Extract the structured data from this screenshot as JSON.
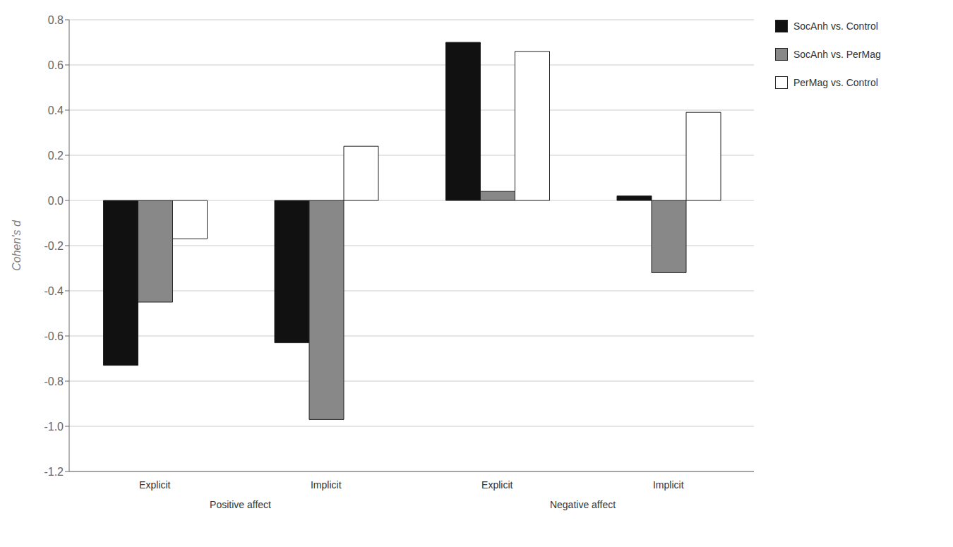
{
  "chart_data": {
    "type": "bar",
    "ylabel": "Cohen's d",
    "categories": [
      "Explicit",
      "Implicit",
      "Explicit",
      "Implicit"
    ],
    "annotations": [
      "Positive affect",
      "Negative affect"
    ],
    "series": [
      {
        "name": "SocAnh vs. Control",
        "color": "#111111",
        "values": [
          -0.73,
          -0.63,
          0.7,
          0.02
        ]
      },
      {
        "name": "SocAnh vs. PerMag",
        "color": "#888888",
        "values": [
          -0.45,
          -0.97,
          0.04,
          -0.32
        ]
      },
      {
        "name": "PerMag vs. Control",
        "color": "#ffffff",
        "values": [
          -0.17,
          0.24,
          0.66,
          0.39
        ]
      }
    ],
    "ylim": [
      -1.2,
      0.8
    ],
    "yticks": [
      -1.2,
      {
        "value": -1.0,
        "label": "-1.0"
      },
      -0.8,
      -0.6,
      -0.4,
      -0.2,
      {
        "value": 0,
        "label": "0.0"
      },
      0.2,
      0.4,
      0.6,
      0.8
    ],
    "grid": true,
    "legend": "right"
  }
}
